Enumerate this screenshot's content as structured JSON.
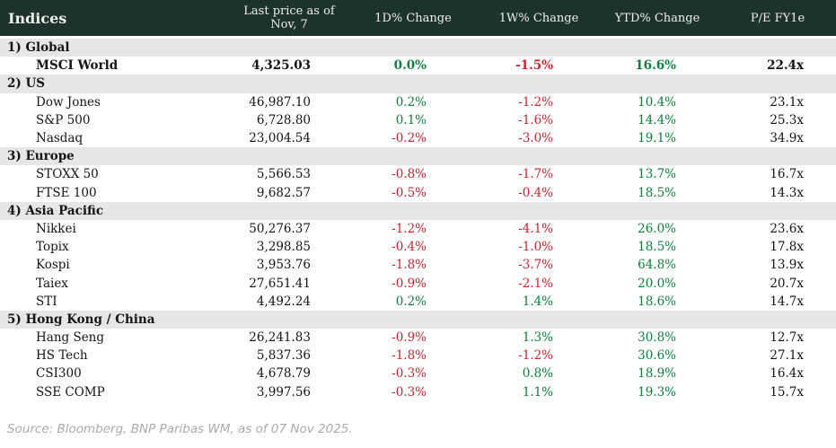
{
  "table": {
    "headers": [
      "Indices",
      "Last price as of Nov, 7",
      "1D% Change",
      "1W% Change",
      "YTD% Change",
      "P/E FY1e"
    ],
    "sections": [
      {
        "label": "1) Global",
        "rows": [
          {
            "name": "MSCI World",
            "emphasis": true,
            "values": [
              "4,325.03",
              "0.0%",
              "-1.5%",
              "16.6%",
              "22.4x"
            ]
          }
        ]
      },
      {
        "label": "2) US",
        "rows": [
          {
            "name": "Dow Jones",
            "values": [
              "46,987.10",
              "0.2%",
              "-1.2%",
              "10.4%",
              "23.1x"
            ]
          },
          {
            "name": "S&P 500",
            "values": [
              "6,728.80",
              "0.1%",
              "-1.6%",
              "14.4%",
              "25.3x"
            ]
          },
          {
            "name": "Nasdaq",
            "values": [
              "23,004.54",
              "-0.2%",
              "-3.0%",
              "19.1%",
              "34.9x"
            ]
          }
        ]
      },
      {
        "label": "3) Europe",
        "rows": [
          {
            "name": "STOXX 50",
            "values": [
              "5,566.53",
              "-0.8%",
              "-1.7%",
              "13.7%",
              "16.7x"
            ]
          },
          {
            "name": "FTSE 100",
            "values": [
              "9,682.57",
              "-0.5%",
              "-0.4%",
              "18.5%",
              "14.3x"
            ]
          }
        ]
      },
      {
        "label": "4) Asia Pacific",
        "rows": [
          {
            "name": "Nikkei",
            "values": [
              "50,276.37",
              "-1.2%",
              "-4.1%",
              "26.0%",
              "23.6x"
            ]
          },
          {
            "name": "Topix",
            "values": [
              "3,298.85",
              "-0.4%",
              "-1.0%",
              "18.5%",
              "17.8x"
            ]
          },
          {
            "name": "Kospi",
            "values": [
              "3,953.76",
              "-1.8%",
              "-3.7%",
              "64.8%",
              "13.9x"
            ]
          },
          {
            "name": "Taiex",
            "values": [
              "27,651.41",
              "-0.9%",
              "-2.1%",
              "20.0%",
              "20.7x"
            ]
          },
          {
            "name": "STI",
            "values": [
              "4,492.24",
              "0.2%",
              "1.4%",
              "18.6%",
              "14.7x"
            ]
          }
        ]
      },
      {
        "label": "5) Hong Kong / China",
        "rows": [
          {
            "name": "Hang Seng",
            "values": [
              "26,241.83",
              "-0.9%",
              "1.3%",
              "30.8%",
              "12.7x"
            ]
          },
          {
            "name": "HS Tech",
            "values": [
              "5,837.36",
              "-1.8%",
              "-1.2%",
              "30.6%",
              "27.1x"
            ]
          },
          {
            "name": "CSI300",
            "values": [
              "4,678.79",
              "-0.3%",
              "0.8%",
              "18.9%",
              "16.4x"
            ]
          },
          {
            "name": "SSE COMP",
            "values": [
              "3,997.56",
              "-0.3%",
              "1.1%",
              "19.3%",
              "15.7x"
            ]
          }
        ]
      }
    ]
  },
  "footer": {
    "source": "Source: Bloomberg, BNP Paribas WM, as of 07 Nov 2025."
  },
  "colors": {
    "header_bg": "#1b332c",
    "header_text": "#f2efe8",
    "section_bg": "#e4e7e3",
    "positive": "#0d7f3d",
    "negative": "#d0212d",
    "source_text": "#a7abae"
  }
}
